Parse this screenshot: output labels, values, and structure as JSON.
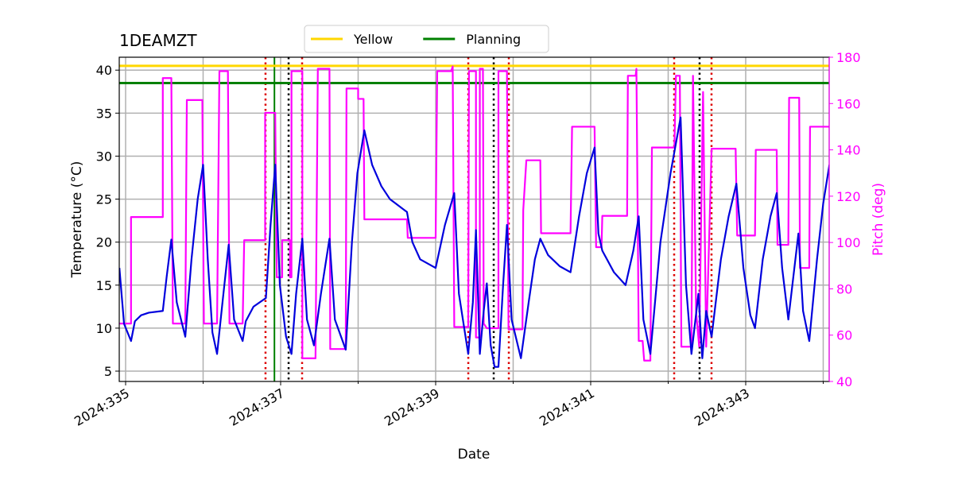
{
  "chart_data": {
    "type": "line",
    "title": "1DEAMZT",
    "xlabel": "Date",
    "ylabel": "Temperature (°C)",
    "y2label": "Pitch (deg)",
    "xlim": [
      334.918,
      344.077
    ],
    "ylim": [
      3.8,
      41.5
    ],
    "y2lim": [
      40,
      180
    ],
    "xticks": [
      {
        "value": 335,
        "label": "2024:335"
      },
      {
        "value": 337,
        "label": "2024:337"
      },
      {
        "value": 339,
        "label": "2024:339"
      },
      {
        "value": 341,
        "label": "2024:341"
      },
      {
        "value": 343,
        "label": "2024:343"
      }
    ],
    "x_minor_ticks": [
      336,
      338,
      340,
      342,
      344
    ],
    "yticks": [
      5,
      10,
      15,
      20,
      25,
      30,
      35,
      40
    ],
    "y2ticks": [
      40,
      60,
      80,
      100,
      120,
      140,
      160,
      180
    ],
    "grid": true,
    "legend": "top",
    "hlines": [
      {
        "name": "Yellow",
        "value": 40.5,
        "color": "#ffd700"
      },
      {
        "name": "Planning",
        "value": 38.5,
        "color": "#008000"
      }
    ],
    "vlines": [
      {
        "value": 336.92,
        "color": "#008000",
        "style": "solid"
      },
      {
        "value": 336.805,
        "color": "#dd0000",
        "style": "dotted"
      },
      {
        "value": 337.277,
        "color": "#dd0000",
        "style": "dotted"
      },
      {
        "value": 339.421,
        "color": "#dd0000",
        "style": "dotted"
      },
      {
        "value": 339.944,
        "color": "#dd0000",
        "style": "dotted"
      },
      {
        "value": 342.077,
        "color": "#dd0000",
        "style": "dotted"
      },
      {
        "value": 342.559,
        "color": "#dd0000",
        "style": "dotted"
      },
      {
        "value": 337.103,
        "color": "#000000",
        "style": "dotted"
      },
      {
        "value": 339.749,
        "color": "#000000",
        "style": "dotted"
      },
      {
        "value": 342.405,
        "color": "#000000",
        "style": "dotted"
      }
    ],
    "series": [
      {
        "color": "#ff00ff",
        "axis": "y2",
        "x": [
          334.92,
          335.07,
          335.07,
          335.48,
          335.48,
          335.59,
          335.61,
          335.77,
          335.79,
          335.99,
          336.01,
          336.18,
          336.21,
          336.32,
          336.34,
          336.51,
          336.53,
          336.8,
          336.8,
          336.93,
          336.95,
          337.02,
          337.02,
          337.12,
          337.12,
          337.14,
          337.14,
          337.28,
          337.28,
          337.45,
          337.48,
          337.63,
          337.64,
          337.84,
          337.85,
          338.0,
          338.0,
          338.07,
          338.08,
          338.63,
          338.64,
          339.0,
          339.02,
          339.2,
          339.22,
          339.24,
          339.42,
          339.43,
          339.52,
          339.52,
          339.57,
          339.57,
          339.61,
          339.62,
          339.66,
          339.81,
          339.81,
          339.92,
          339.94,
          340.12,
          340.13,
          340.17,
          340.35,
          340.36,
          340.74,
          340.76,
          341.05,
          341.07,
          341.14,
          341.15,
          341.47,
          341.48,
          341.58,
          341.59,
          341.62,
          341.67,
          341.69,
          341.77,
          341.79,
          342.08,
          342.1,
          342.15,
          342.17,
          342.3,
          342.32,
          342.36,
          342.4,
          342.45,
          342.49,
          342.56,
          342.87,
          342.89,
          343.12,
          343.13,
          343.4,
          343.41,
          343.55,
          343.56,
          343.69,
          343.7,
          343.82,
          343.83,
          344.08
        ],
        "values": [
          65,
          65,
          111,
          111,
          171,
          171,
          65,
          65,
          161.5,
          161.5,
          65,
          65,
          174,
          174,
          65,
          65,
          101,
          101,
          156,
          156,
          85,
          85,
          101,
          101,
          85,
          85,
          174,
          174,
          50,
          50,
          175,
          175,
          54,
          54,
          166.5,
          166.5,
          162,
          162,
          110,
          110,
          102,
          102,
          174,
          174,
          176,
          63.5,
          63.5,
          174,
          174,
          59,
          59,
          175,
          175,
          65,
          63,
          63,
          174,
          174,
          62.5,
          62.5,
          114,
          135.5,
          135.5,
          104,
          104,
          150,
          150,
          98,
          98,
          111.5,
          111.5,
          172,
          172,
          175,
          57.5,
          57.5,
          49,
          49,
          141,
          141,
          172,
          172,
          55,
          55,
          172,
          70,
          55,
          165,
          55,
          140.5,
          140.5,
          103,
          103,
          140,
          140,
          99,
          99,
          162.5,
          162.5,
          89,
          89,
          150,
          150
        ]
      },
      {
        "color": "#0000dd",
        "x": [
          334.92,
          334.98,
          335.07,
          335.12,
          335.2,
          335.3,
          335.48,
          335.53,
          335.59,
          335.66,
          335.77,
          335.85,
          335.93,
          336.0,
          336.06,
          336.12,
          336.18,
          336.25,
          336.33,
          336.4,
          336.51,
          336.55,
          336.65,
          336.81,
          336.87,
          336.93,
          336.99,
          337.07,
          337.14,
          337.2,
          337.28,
          337.34,
          337.43,
          337.52,
          337.63,
          337.7,
          337.84,
          337.92,
          337.99,
          338.08,
          338.18,
          338.3,
          338.41,
          338.63,
          338.7,
          338.8,
          339.0,
          339.12,
          339.24,
          339.3,
          339.42,
          339.48,
          339.52,
          339.57,
          339.62,
          339.66,
          339.71,
          339.76,
          339.81,
          339.87,
          339.92,
          339.98,
          340.1,
          340.2,
          340.28,
          340.35,
          340.45,
          340.6,
          340.74,
          340.85,
          340.95,
          341.05,
          341.1,
          341.15,
          341.3,
          341.45,
          341.55,
          341.62,
          341.68,
          341.77,
          341.9,
          342.03,
          342.16,
          342.23,
          342.3,
          342.39,
          342.44,
          342.49,
          342.56,
          342.68,
          342.78,
          342.88,
          342.97,
          343.06,
          343.12,
          343.22,
          343.32,
          343.4,
          343.47,
          343.55,
          343.68,
          343.74,
          343.82,
          343.92,
          344.0,
          344.08
        ],
        "values": [
          17,
          10.5,
          8.5,
          10.8,
          11.5,
          11.8,
          12,
          16,
          20.3,
          13,
          9,
          18,
          25,
          29,
          18,
          9.5,
          7,
          13,
          19.7,
          11,
          8.5,
          10.8,
          12.5,
          13.5,
          22,
          29,
          15,
          9,
          7,
          14,
          20.4,
          11,
          8,
          14,
          20.4,
          11,
          7.5,
          20,
          28,
          33,
          29,
          26.5,
          25,
          23.5,
          20,
          18,
          17,
          22,
          25.7,
          14,
          7,
          13,
          21.4,
          7,
          12,
          15.2,
          8,
          5.5,
          5.5,
          15,
          22,
          11,
          6.5,
          13,
          18,
          20.4,
          18.5,
          17.2,
          16.5,
          23,
          28,
          31,
          21,
          19,
          16.5,
          15,
          19,
          23,
          11,
          7,
          20,
          28,
          34.5,
          15,
          7,
          14,
          6.5,
          12,
          9,
          18,
          23,
          26.8,
          17,
          11.5,
          10,
          18,
          23,
          25.7,
          17,
          11,
          21,
          12,
          8.5,
          18,
          24.5,
          29
        ]
      }
    ]
  }
}
